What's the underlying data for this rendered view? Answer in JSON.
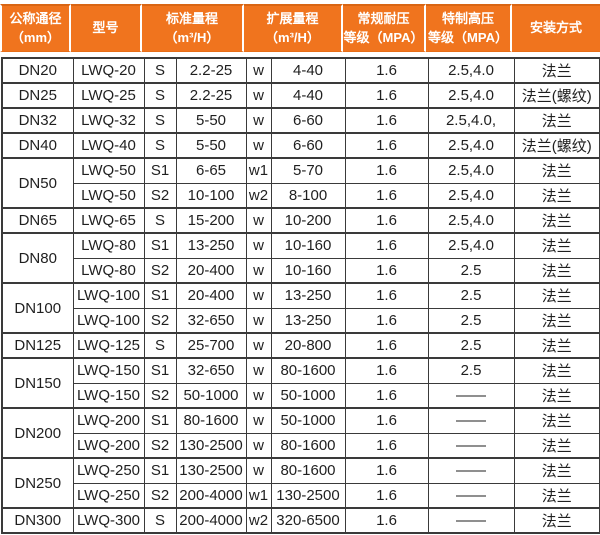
{
  "theme": {
    "header_bg": "#f0741e",
    "header_top_border": "#d96513",
    "header_text": "#ffffff",
    "body_border": "#3a3a3a",
    "body_text": "#1f1f1f",
    "body_bg": "#ffffff"
  },
  "table": {
    "headers": [
      {
        "id": "nominal-diameter",
        "label": "公称通径\n（mm）"
      },
      {
        "id": "model",
        "label": "型号"
      },
      {
        "id": "standard-range",
        "label": "标准量程\n（m³/H）"
      },
      {
        "id": "extended-range",
        "label": "扩展量程\n（m³/H）"
      },
      {
        "id": "normal-pressure",
        "label": "常规耐压\n等级（MPA）"
      },
      {
        "id": "special-pressure",
        "label": "特制高压\n等级（MPA）"
      },
      {
        "id": "installation",
        "label": "安装方式"
      }
    ],
    "groups": [
      {
        "dn": "DN20",
        "rows": [
          {
            "model": "LWQ-20",
            "s": "S",
            "std": "2.2-25",
            "w": "w",
            "ext": "4-40",
            "normal": "1.6",
            "high": "2.5,4.0",
            "install": "法兰"
          }
        ]
      },
      {
        "dn": "DN25",
        "rows": [
          {
            "model": "LWQ-25",
            "s": "S",
            "std": "2.2-25",
            "w": "w",
            "ext": "4-40",
            "normal": "1.6",
            "high": "2.5,4.0",
            "install": "法兰(螺纹)"
          }
        ]
      },
      {
        "dn": "DN32",
        "rows": [
          {
            "model": "LWQ-32",
            "s": "S",
            "std": "5-50",
            "w": "w",
            "ext": "6-60",
            "normal": "1.6",
            "high": "2.5,4.0,",
            "install": "法兰"
          }
        ]
      },
      {
        "dn": "DN40",
        "rows": [
          {
            "model": "LWQ-40",
            "s": "S",
            "std": "5-50",
            "w": "w",
            "ext": "6-60",
            "normal": "1.6",
            "high": "2.5,4.0",
            "install": "法兰(螺纹)"
          }
        ]
      },
      {
        "dn": "DN50",
        "rows": [
          {
            "model": "LWQ-50",
            "s": "S1",
            "std": "6-65",
            "w": "w1",
            "ext": "5-70",
            "normal": "1.6",
            "high": "2.5,4.0",
            "install": "法兰"
          },
          {
            "model": "LWQ-50",
            "s": "S2",
            "std": "10-100",
            "w": "w2",
            "ext": "8-100",
            "normal": "1.6",
            "high": "2.5,4.0",
            "install": "法兰"
          }
        ]
      },
      {
        "dn": "DN65",
        "rows": [
          {
            "model": "LWQ-65",
            "s": "S",
            "std": "15-200",
            "w": "w",
            "ext": "10-200",
            "normal": "1.6",
            "high": "2.5,4.0",
            "install": "法兰"
          }
        ]
      },
      {
        "dn": "DN80",
        "rows": [
          {
            "model": "LWQ-80",
            "s": "S1",
            "std": "13-250",
            "w": "w",
            "ext": "10-160",
            "normal": "1.6",
            "high": "2.5,4.0",
            "install": "法兰"
          },
          {
            "model": "LWQ-80",
            "s": "S2",
            "std": "20-400",
            "w": "w",
            "ext": "10-160",
            "normal": "1.6",
            "high": "2.5",
            "install": "法兰"
          }
        ]
      },
      {
        "dn": "DN100",
        "rows": [
          {
            "model": "LWQ-100",
            "s": "S1",
            "std": "20-400",
            "w": "w",
            "ext": "13-250",
            "normal": "1.6",
            "high": "2.5",
            "install": "法兰"
          },
          {
            "model": "LWQ-100",
            "s": "S2",
            "std": "32-650",
            "w": "w",
            "ext": "13-250",
            "normal": "1.6",
            "high": "2.5",
            "install": "法兰"
          }
        ]
      },
      {
        "dn": "DN125",
        "rows": [
          {
            "model": "LWQ-125",
            "s": "S",
            "std": "25-700",
            "w": "w",
            "ext": "20-800",
            "normal": "1.6",
            "high": "2.5",
            "install": "法兰"
          }
        ]
      },
      {
        "dn": "DN150",
        "rows": [
          {
            "model": "LWQ-150",
            "s": "S1",
            "std": "32-650",
            "w": "w",
            "ext": "80-1600",
            "normal": "1.6",
            "high": "2.5",
            "install": "法兰"
          },
          {
            "model": "LWQ-150",
            "s": "S2",
            "std": "50-1000",
            "w": "w",
            "ext": "50-1000",
            "normal": "1.6",
            "high": "——",
            "install": "法兰"
          }
        ]
      },
      {
        "dn": "DN200",
        "rows": [
          {
            "model": "LWQ-200",
            "s": "S1",
            "std": "80-1600",
            "w": "w",
            "ext": "50-1000",
            "normal": "1.6",
            "high": "——",
            "install": "法兰"
          },
          {
            "model": "LWQ-200",
            "s": "S2",
            "std": "130-2500",
            "w": "w",
            "ext": "80-1600",
            "normal": "1.6",
            "high": "——",
            "install": "法兰"
          }
        ]
      },
      {
        "dn": "DN250",
        "rows": [
          {
            "model": "LWQ-250",
            "s": "S1",
            "std": "130-2500",
            "w": "w",
            "ext": "80-1600",
            "normal": "1.6",
            "high": "——",
            "install": "法兰"
          },
          {
            "model": "LWQ-250",
            "s": "S2",
            "std": "200-4000",
            "w": "w1",
            "ext": "130-2500",
            "normal": "1.6",
            "high": "——",
            "install": "法兰"
          }
        ]
      },
      {
        "dn": "DN300",
        "rows": [
          {
            "model": "LWQ-300",
            "s": "S",
            "std": "200-4000",
            "w": "w2",
            "ext": "320-6500",
            "normal": "1.6",
            "high": "——",
            "install": "法兰"
          }
        ]
      }
    ]
  }
}
